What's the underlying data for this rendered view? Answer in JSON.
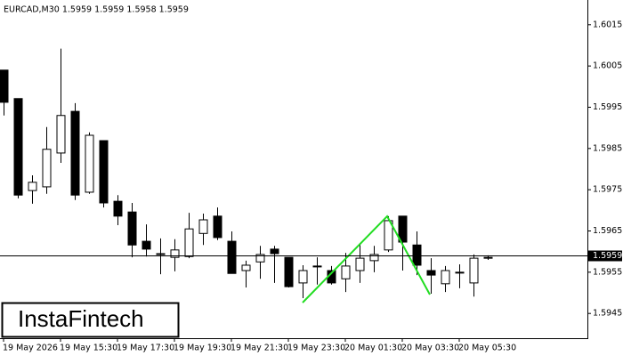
{
  "chart_data": {
    "type": "candlestick",
    "title": "EURCAD,M30  1.5959 1.5959 1.5958 1.5959",
    "logo": "InstaFintech",
    "categories": [
      "19 May 2026",
      null,
      null,
      null,
      "19 May 15:30",
      null,
      null,
      null,
      "19 May 17:30",
      null,
      null,
      null,
      "19 May 19:30",
      null,
      null,
      null,
      "19 May 21:30",
      null,
      null,
      null,
      "19 May 23:30",
      null,
      null,
      null,
      "20 May 01:30",
      null,
      null,
      null,
      "20 May 03:30",
      null,
      null,
      null,
      "20 May 05:30",
      null,
      null
    ],
    "open": [
      1.6004,
      1.59971,
      1.59748,
      1.59757,
      1.59839,
      1.5994,
      1.59744,
      1.59869,
      1.59722,
      1.59696,
      1.59625,
      1.59595,
      1.59586,
      1.59588,
      1.59644,
      1.59686,
      1.59625,
      1.59554,
      1.59575,
      1.59606,
      1.59586,
      1.59524,
      1.59565,
      1.59554,
      1.59534,
      1.59554,
      1.59578,
      1.59604,
      1.59686,
      1.59616,
      1.59554,
      1.59522,
      1.5955,
      1.59524,
      1.59586
    ],
    "high": [
      1.6004,
      1.59971,
      1.59785,
      1.59902,
      1.60092,
      1.5996,
      1.59889,
      1.59869,
      1.59737,
      1.59718,
      1.59666,
      1.59632,
      1.5963,
      1.59694,
      1.59692,
      1.59707,
      1.59649,
      1.59578,
      1.59614,
      1.59614,
      1.59586,
      1.59567,
      1.59586,
      1.59565,
      1.59597,
      1.59621,
      1.59614,
      1.59686,
      1.59686,
      1.59649,
      1.59584,
      1.59565,
      1.59569,
      1.59593,
      1.59591
    ],
    "low": [
      1.5993,
      1.59729,
      1.59716,
      1.5974,
      1.59815,
      1.59725,
      1.5974,
      1.59707,
      1.59664,
      1.59586,
      1.59588,
      1.59545,
      1.59552,
      1.59584,
      1.59616,
      1.59628,
      1.59547,
      1.59513,
      1.59534,
      1.59524,
      1.59513,
      1.59487,
      1.5952,
      1.5952,
      1.59502,
      1.59524,
      1.5955,
      1.59599,
      1.59554,
      1.59543,
      1.59498,
      1.59502,
      1.59511,
      1.59491,
      1.5958
    ],
    "close": [
      1.59962,
      1.59737,
      1.59768,
      1.59848,
      1.5993,
      1.59737,
      1.59882,
      1.59718,
      1.59686,
      1.59616,
      1.59606,
      1.59595,
      1.59604,
      1.59655,
      1.59677,
      1.59634,
      1.59547,
      1.59567,
      1.59593,
      1.59595,
      1.59515,
      1.59554,
      1.59565,
      1.59524,
      1.59565,
      1.59584,
      1.59593,
      1.59675,
      1.59623,
      1.59567,
      1.59543,
      1.59554,
      1.5955,
      1.59584,
      1.59586
    ],
    "up_color": "#ffffff",
    "down_color": "#000000",
    "ylim": [
      1.5939,
      1.6021
    ],
    "yticks": [
      1.5945,
      1.5955,
      1.5965,
      1.5975,
      1.5985,
      1.5995,
      1.6005,
      1.6015
    ],
    "last_price": 1.5959
  }
}
